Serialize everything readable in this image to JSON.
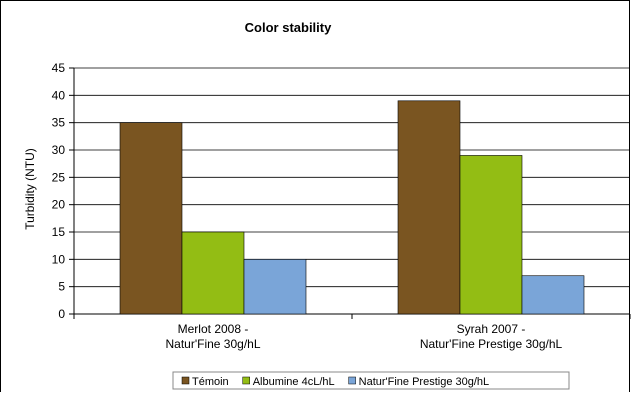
{
  "chart_data": {
    "type": "bar",
    "title": "Color stability",
    "xlabel": "",
    "ylabel": "Turbidity (NTU)",
    "ylim": [
      0,
      45
    ],
    "yticks": [
      0,
      5,
      10,
      15,
      20,
      25,
      30,
      35,
      40,
      45
    ],
    "grid": true,
    "legend_position": "bottom",
    "categories": [
      [
        "Merlot 2008 -",
        "Natur'Fine 30g/hL"
      ],
      [
        "Syrah 2007 -",
        "Natur'Fine Prestige 30g/hL"
      ]
    ],
    "series": [
      {
        "name": "Témoin",
        "color": "#7a5521",
        "values": [
          35,
          39
        ]
      },
      {
        "name": "Albumine 4cL/hL",
        "color": "#93bd14",
        "values": [
          15,
          29
        ]
      },
      {
        "name": "Natur'Fine Prestige 30g/hL",
        "color": "#7aa5d8",
        "values": [
          10,
          7
        ]
      }
    ]
  }
}
